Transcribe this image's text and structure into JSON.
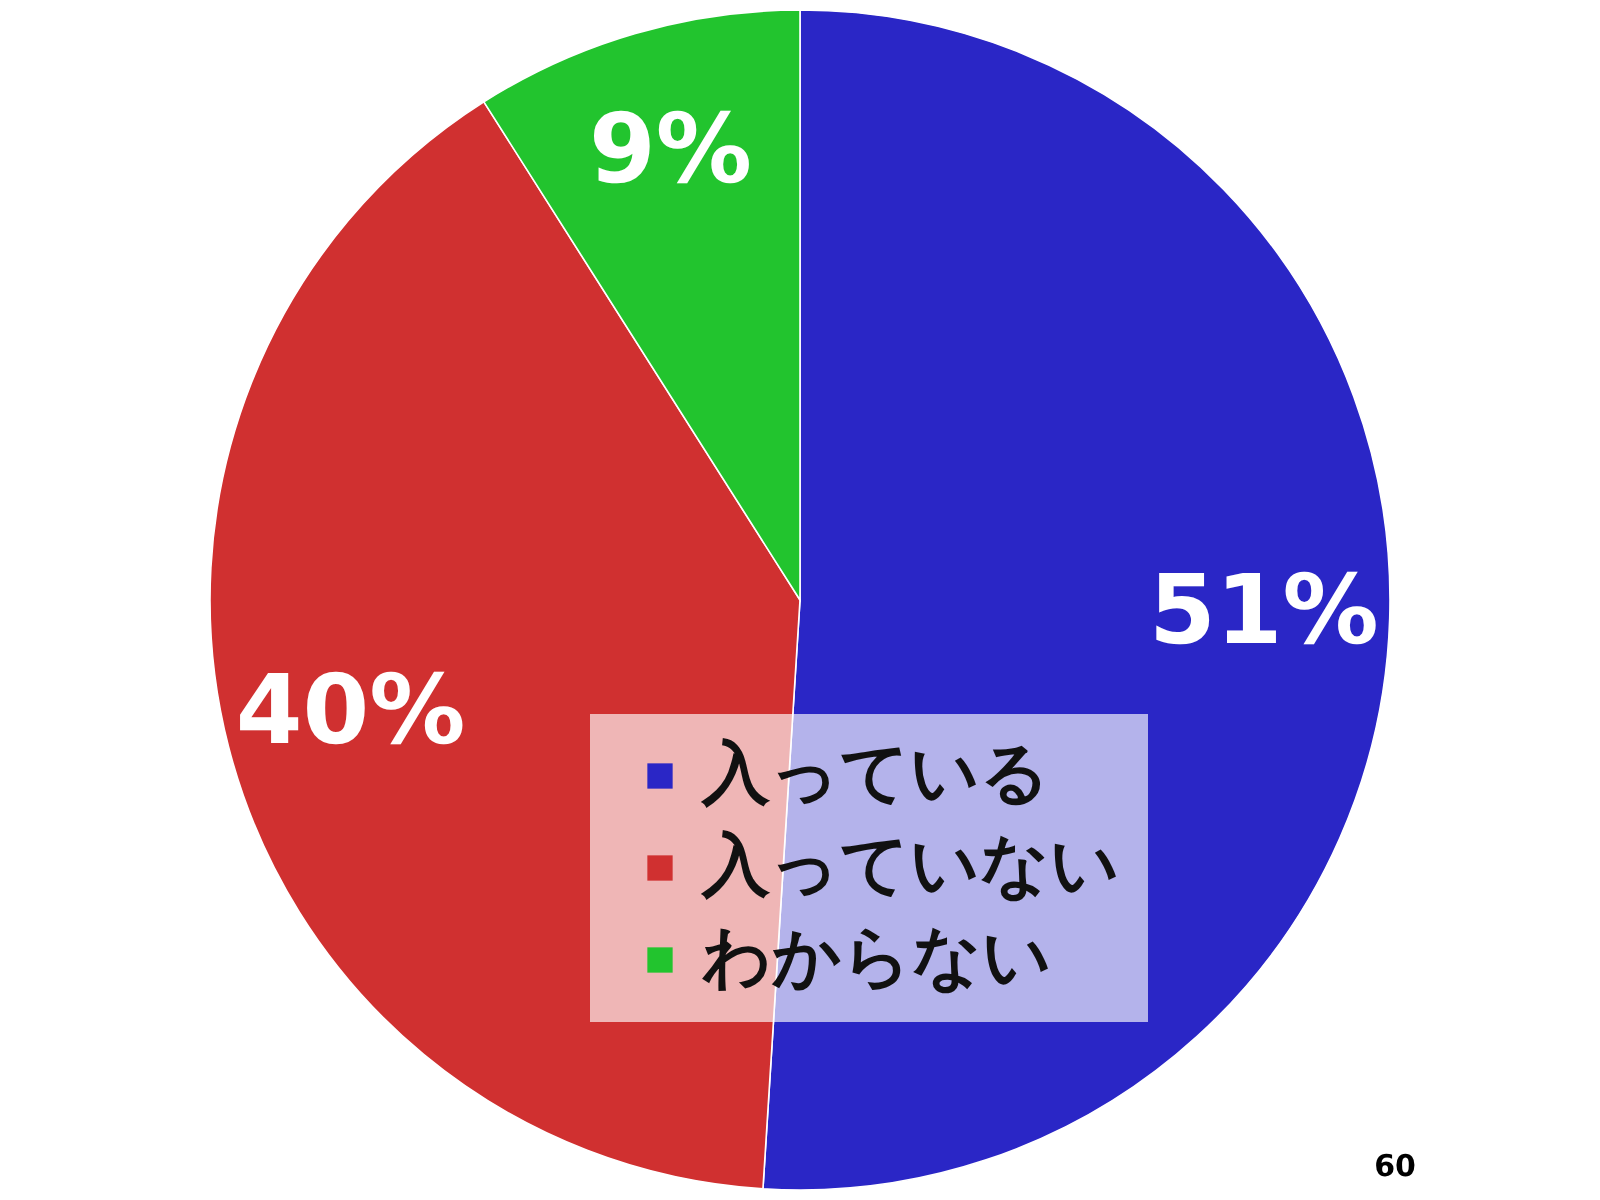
{
  "chart_data": {
    "type": "pie",
    "categories": [
      "入っている",
      "入っていない",
      "わからない"
    ],
    "values": [
      51,
      40,
      9
    ],
    "colors": [
      "#2a26c6",
      "#d03030",
      "#22c42e"
    ],
    "value_labels": [
      "51%",
      "40%",
      "9%"
    ],
    "legend": "bottom",
    "annotations": [
      "60"
    ]
  }
}
